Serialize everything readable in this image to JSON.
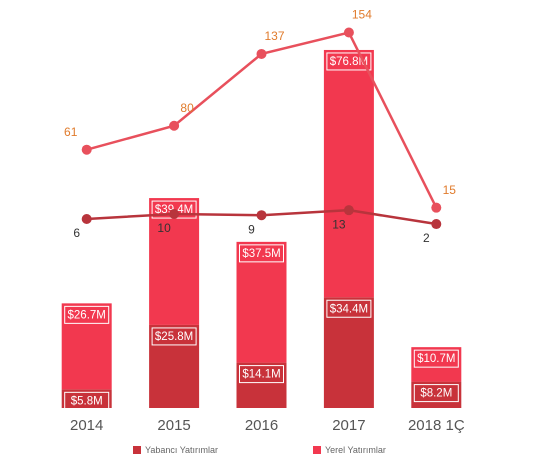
{
  "chart_data": {
    "type": "bar",
    "categories": [
      "2014",
      "2015",
      "2016",
      "2017",
      "2018 1Ç"
    ],
    "stacked": true,
    "ylim": [
      0,
      117.4
    ],
    "y2lim": [
      -144,
      156
    ],
    "series": [
      {
        "name": "Yabancı Yatırımlar",
        "type": "bar",
        "color": "#c8323a",
        "values": [
          5.8,
          25.8,
          14.1,
          34.4,
          8.2
        ],
        "value_labels": [
          "$5.8M",
          "$25.8M",
          "$14.1M",
          "$34.4M",
          "$8.2M"
        ]
      },
      {
        "name": "Yerel Yatırımlar",
        "type": "bar",
        "color": "#f2384f",
        "values": [
          26.7,
          39.4,
          37.5,
          76.8,
          10.7
        ],
        "value_labels": [
          "$26.7M",
          "$39.4M",
          "$37.5M",
          "$76.8M",
          "$10.7M"
        ]
      },
      {
        "type": "line",
        "axis": "y2",
        "color": "#b8343c",
        "label_color": "#333333",
        "values": [
          6,
          10,
          9,
          13,
          2
        ]
      },
      {
        "type": "line",
        "axis": "y2",
        "color": "#e8505c",
        "label_color": "#e07b2c",
        "values": [
          61,
          80,
          137,
          154,
          15
        ]
      }
    ]
  }
}
